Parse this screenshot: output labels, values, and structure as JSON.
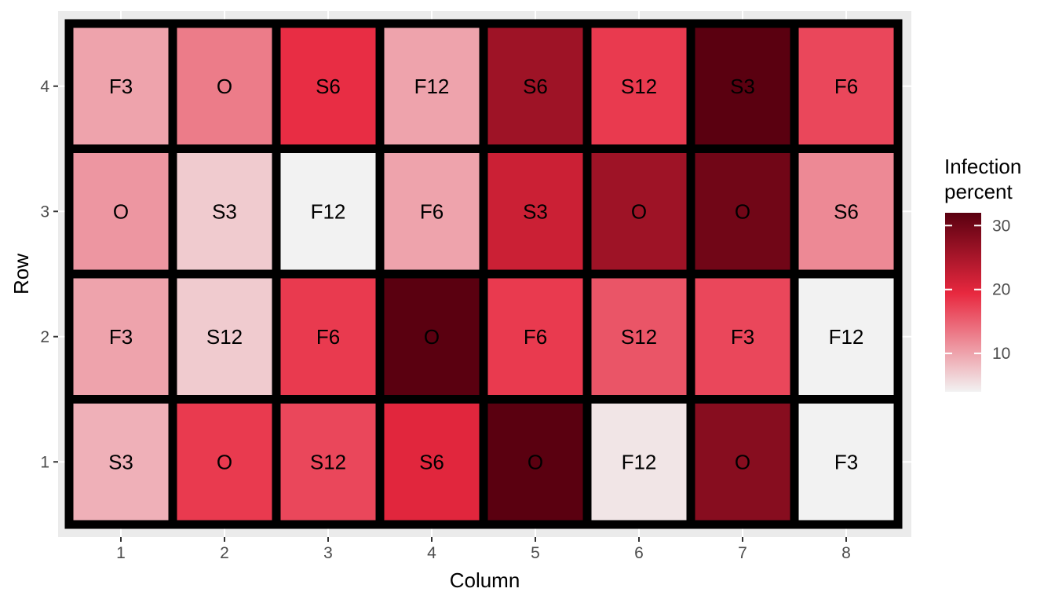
{
  "chart_data": {
    "type": "heatmap",
    "xlabel": "Column",
    "ylabel": "Row",
    "x_categories": [
      "1",
      "2",
      "3",
      "4",
      "5",
      "6",
      "7",
      "8"
    ],
    "y_categories": [
      "1",
      "2",
      "3",
      "4"
    ],
    "legend": {
      "title_lines": [
        "Infection",
        "percent"
      ],
      "ticks": [
        10,
        20,
        30
      ],
      "range": [
        4,
        32
      ],
      "placement": "right",
      "color_low": "#f2f2f2",
      "color_mid": "#e8283f",
      "color_high": "#5a0010"
    },
    "cells": [
      {
        "row": 4,
        "col": 1,
        "label": "F3",
        "value": 10
      },
      {
        "row": 4,
        "col": 2,
        "label": "O",
        "value": 13
      },
      {
        "row": 4,
        "col": 3,
        "label": "S6",
        "value": 19
      },
      {
        "row": 4,
        "col": 4,
        "label": "F12",
        "value": 10
      },
      {
        "row": 4,
        "col": 5,
        "label": "S6",
        "value": 26
      },
      {
        "row": 4,
        "col": 6,
        "label": "S12",
        "value": 18
      },
      {
        "row": 4,
        "col": 7,
        "label": "S3",
        "value": 32
      },
      {
        "row": 4,
        "col": 8,
        "label": "F6",
        "value": 17
      },
      {
        "row": 3,
        "col": 1,
        "label": "O",
        "value": 11
      },
      {
        "row": 3,
        "col": 2,
        "label": "S3",
        "value": 7
      },
      {
        "row": 3,
        "col": 3,
        "label": "F12",
        "value": 4
      },
      {
        "row": 3,
        "col": 4,
        "label": "F6",
        "value": 10
      },
      {
        "row": 3,
        "col": 5,
        "label": "S3",
        "value": 22
      },
      {
        "row": 3,
        "col": 6,
        "label": "O",
        "value": 26
      },
      {
        "row": 3,
        "col": 7,
        "label": "O",
        "value": 30
      },
      {
        "row": 3,
        "col": 8,
        "label": "S6",
        "value": 12
      },
      {
        "row": 2,
        "col": 1,
        "label": "F3",
        "value": 10
      },
      {
        "row": 2,
        "col": 2,
        "label": "S12",
        "value": 7
      },
      {
        "row": 2,
        "col": 3,
        "label": "F6",
        "value": 18
      },
      {
        "row": 2,
        "col": 4,
        "label": "O",
        "value": 32
      },
      {
        "row": 2,
        "col": 5,
        "label": "F6",
        "value": 18
      },
      {
        "row": 2,
        "col": 6,
        "label": "S12",
        "value": 16
      },
      {
        "row": 2,
        "col": 7,
        "label": "F3",
        "value": 17
      },
      {
        "row": 2,
        "col": 8,
        "label": "F12",
        "value": 4
      },
      {
        "row": 1,
        "col": 1,
        "label": "S3",
        "value": 9
      },
      {
        "row": 1,
        "col": 2,
        "label": "O",
        "value": 18
      },
      {
        "row": 1,
        "col": 3,
        "label": "S12",
        "value": 17
      },
      {
        "row": 1,
        "col": 4,
        "label": "S6",
        "value": 20
      },
      {
        "row": 1,
        "col": 5,
        "label": "O",
        "value": 33
      },
      {
        "row": 1,
        "col": 6,
        "label": "F12",
        "value": 5
      },
      {
        "row": 1,
        "col": 7,
        "label": "O",
        "value": 28
      },
      {
        "row": 1,
        "col": 8,
        "label": "F3",
        "value": 4
      }
    ]
  }
}
